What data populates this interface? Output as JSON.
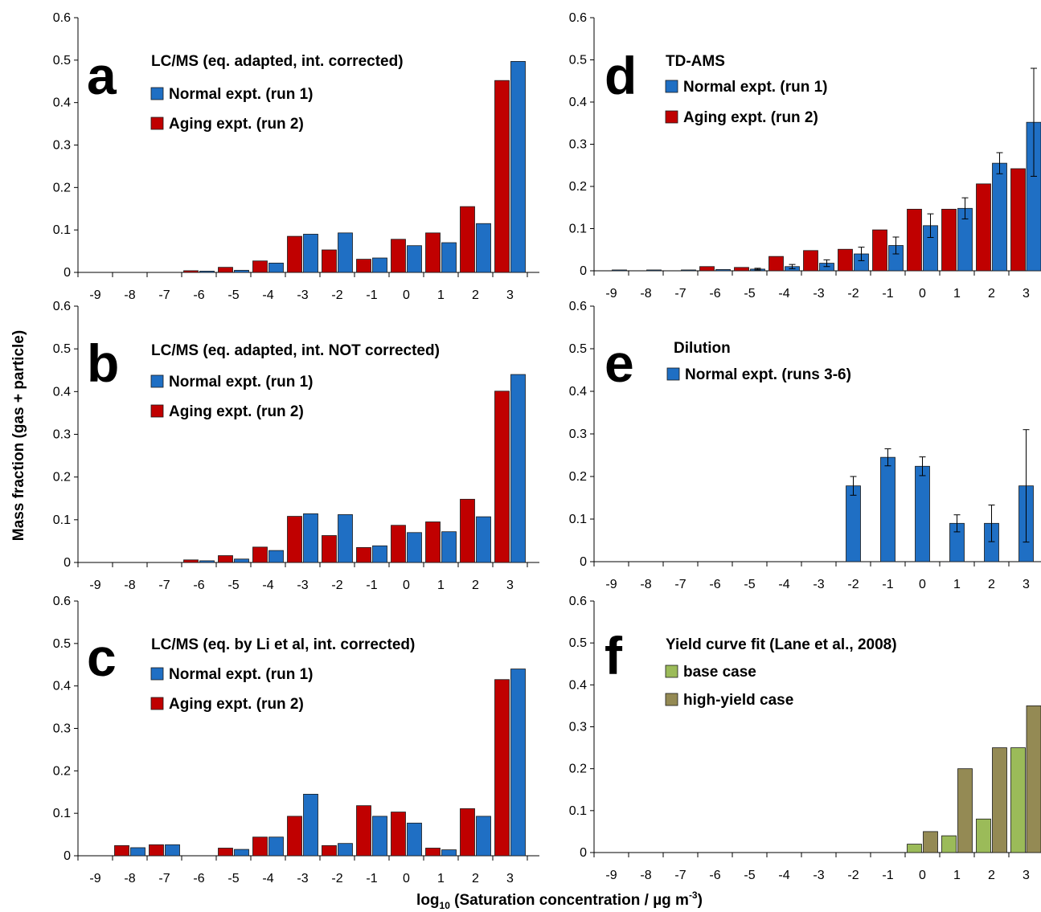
{
  "figure": {
    "ylabel": "Mass fraction (gas + particle)",
    "xlabel_prefix": "log",
    "xlabel_sub": "10",
    "xlabel_main": " (Saturation concentration / µg m",
    "xlabel_sup": "-3",
    "xlabel_suffix": ")"
  },
  "colors": {
    "blue": "#1f6fc4",
    "red": "#c00000",
    "light_green": "#9bbb59",
    "olive": "#948a54"
  },
  "chart_data": [
    {
      "id": "a",
      "letter": "a",
      "type": "bar",
      "title": "LC/MS (eq. adapted, int. corrected)",
      "categories": [
        "-9",
        "-8",
        "-7",
        "-6",
        "-5",
        "-4",
        "-3",
        "-2",
        "-1",
        "0",
        "1",
        "2",
        "3"
      ],
      "ylim": [
        0,
        0.6
      ],
      "yticks": [
        "0",
        "0.1",
        "0.2",
        "0.3",
        "0.4",
        "0.5",
        "0.6"
      ],
      "series": [
        {
          "name": "Aging expt. (run 2)",
          "color": "#c00000",
          "values": [
            0,
            0,
            0,
            0.004,
            0.012,
            0.027,
            0.085,
            0.053,
            0.031,
            0.078,
            0.093,
            0.155,
            0.452
          ]
        },
        {
          "name": "Normal expt. (run 1)",
          "color": "#1f6fc4",
          "values": [
            0,
            0,
            0,
            0.003,
            0.005,
            0.022,
            0.09,
            0.093,
            0.034,
            0.063,
            0.07,
            0.115,
            0.497
          ]
        }
      ],
      "legend": [
        {
          "label": "Normal expt. (run 1)",
          "color": "#1f6fc4"
        },
        {
          "label": "Aging expt. (run 2)",
          "color": "#c00000"
        }
      ]
    },
    {
      "id": "b",
      "letter": "b",
      "type": "bar",
      "title": "LC/MS (eq. adapted, int. NOT corrected)",
      "categories": [
        "-9",
        "-8",
        "-7",
        "-6",
        "-5",
        "-4",
        "-3",
        "-2",
        "-1",
        "0",
        "1",
        "2",
        "3"
      ],
      "ylim": [
        0,
        0.6
      ],
      "yticks": [
        "0",
        "0.1",
        "0.2",
        "0.3",
        "0.4",
        "0.5",
        "0.6"
      ],
      "series": [
        {
          "name": "Aging expt. (run 2)",
          "color": "#c00000",
          "values": [
            0,
            0,
            0,
            0.006,
            0.016,
            0.036,
            0.108,
            0.063,
            0.035,
            0.087,
            0.095,
            0.148,
            0.401
          ]
        },
        {
          "name": "Normal expt. (run 1)",
          "color": "#1f6fc4",
          "values": [
            0,
            0,
            0,
            0.004,
            0.008,
            0.028,
            0.114,
            0.112,
            0.039,
            0.07,
            0.072,
            0.107,
            0.44
          ]
        }
      ],
      "legend": [
        {
          "label": "Normal expt. (run 1)",
          "color": "#1f6fc4"
        },
        {
          "label": "Aging expt. (run 2)",
          "color": "#c00000"
        }
      ]
    },
    {
      "id": "c",
      "letter": "c",
      "type": "bar",
      "title": "LC/MS (eq. by Li et al, int. corrected)",
      "categories": [
        "-9",
        "-8",
        "-7",
        "-6",
        "-5",
        "-4",
        "-3",
        "-2",
        "-1",
        "0",
        "1",
        "2",
        "3"
      ],
      "ylim": [
        0,
        0.6
      ],
      "yticks": [
        "0",
        "0.1",
        "0.2",
        "0.3",
        "0.4",
        "0.5",
        "0.6"
      ],
      "series": [
        {
          "name": "Aging expt. (run 2)",
          "color": "#c00000",
          "values": [
            0,
            0.024,
            0.026,
            0,
            0.018,
            0.044,
            0.093,
            0.024,
            0.118,
            0.103,
            0.018,
            0.111,
            0.415
          ]
        },
        {
          "name": "Normal expt. (run 1)",
          "color": "#1f6fc4",
          "values": [
            0,
            0.019,
            0.026,
            0,
            0.015,
            0.044,
            0.145,
            0.029,
            0.093,
            0.077,
            0.014,
            0.093,
            0.44
          ]
        }
      ],
      "legend": [
        {
          "label": "Normal expt. (run 1)",
          "color": "#1f6fc4"
        },
        {
          "label": "Aging expt. (run 2)",
          "color": "#c00000"
        }
      ]
    },
    {
      "id": "d",
      "letter": "d",
      "type": "bar",
      "title": "TD-AMS",
      "categories": [
        "-9",
        "-8",
        "-7",
        "-6",
        "-5",
        "-4",
        "-3",
        "-2",
        "-1",
        "0",
        "1",
        "2",
        "3"
      ],
      "ylim": [
        0,
        0.6
      ],
      "yticks": [
        "0",
        "0.1",
        "0.2",
        "0.3",
        "0.4",
        "0.5",
        "0.6"
      ],
      "series": [
        {
          "name": "Aging expt. (run 2)",
          "color": "#c00000",
          "values": [
            0,
            0,
            0,
            0.01,
            0.008,
            0.034,
            0.048,
            0.051,
            0.097,
            0.146,
            0.146,
            0.206,
            0.242
          ]
        },
        {
          "name": "Normal expt. (run 1)",
          "color": "#1f6fc4",
          "values": [
            0.002,
            0.002,
            0.002,
            0.003,
            0.004,
            0.01,
            0.018,
            0.04,
            0.06,
            0.107,
            0.148,
            0.255,
            0.352
          ],
          "errors": [
            0,
            0,
            0,
            0,
            0.002,
            0.005,
            0.008,
            0.016,
            0.02,
            0.028,
            0.025,
            0.025,
            0.128
          ]
        }
      ],
      "legend": [
        {
          "label": "Normal expt. (run 1)",
          "color": "#1f6fc4"
        },
        {
          "label": "Aging expt. (run 2)",
          "color": "#c00000"
        }
      ]
    },
    {
      "id": "e",
      "letter": "e",
      "type": "bar",
      "title": "Dilution",
      "categories": [
        "-9",
        "-8",
        "-7",
        "-6",
        "-5",
        "-4",
        "-3",
        "-2",
        "-1",
        "0",
        "1",
        "2",
        "3"
      ],
      "ylim": [
        0,
        0.6
      ],
      "yticks": [
        "0",
        "0.1",
        "0.2",
        "0.3",
        "0.4",
        "0.5",
        "0.6"
      ],
      "series": [
        {
          "name": "Normal expt. (runs 3-6)",
          "color": "#1f6fc4",
          "single": true,
          "values": [
            0,
            0,
            0,
            0,
            0,
            0,
            0,
            0.178,
            0.245,
            0.224,
            0.09,
            0.09,
            0.178
          ],
          "errors": [
            0,
            0,
            0,
            0,
            0,
            0,
            0,
            0.022,
            0.02,
            0.022,
            0.02,
            0.043,
            0.132
          ]
        }
      ],
      "legend": [
        {
          "label": "Normal expt. (runs 3-6)",
          "color": "#1f6fc4"
        }
      ]
    },
    {
      "id": "f",
      "letter": "f",
      "type": "bar",
      "title": "Yield curve fit (Lane et al., 2008)",
      "categories": [
        "-9",
        "-8",
        "-7",
        "-6",
        "-5",
        "-4",
        "-3",
        "-2",
        "-1",
        "0",
        "1",
        "2",
        "3"
      ],
      "ylim": [
        0,
        0.6
      ],
      "yticks": [
        "0",
        "0.1",
        "0.2",
        "0.3",
        "0.4",
        "0.5",
        "0.6"
      ],
      "series": [
        {
          "name": "base case",
          "color": "#9bbb59",
          "values": [
            0,
            0,
            0,
            0,
            0,
            0,
            0,
            0,
            0,
            0.02,
            0.04,
            0.08,
            0.25
          ]
        },
        {
          "name": "high-yield case",
          "color": "#948a54",
          "values": [
            0,
            0,
            0,
            0,
            0,
            0,
            0,
            0,
            0,
            0.05,
            0.2,
            0.25,
            0.35
          ]
        }
      ],
      "legend": [
        {
          "label": "base case",
          "color": "#9bbb59"
        },
        {
          "label": "high-yield case",
          "color": "#948a54"
        }
      ]
    }
  ]
}
